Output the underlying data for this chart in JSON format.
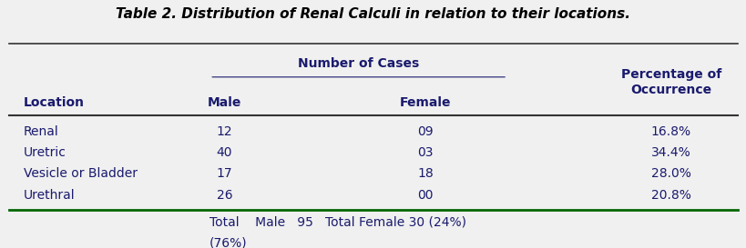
{
  "title": "Table 2. Distribution of Renal Calculi in relation to their locations.",
  "header_col1": "Location",
  "header_group": "Number of Cases",
  "header_sub1": "Male",
  "header_sub2": "Female",
  "header_col4": "Percentage of\nOccurrence",
  "rows": [
    [
      "Renal",
      "12",
      "09",
      "16.8%"
    ],
    [
      "Uretric",
      "40",
      "03",
      "34.4%"
    ],
    [
      "Vesicle or Bladder",
      "17",
      "18",
      "28.0%"
    ],
    [
      "Urethral",
      "26",
      "00",
      "20.8%"
    ]
  ],
  "footer": "Total    Male   95   Total Female 30 (24%)\n(76%)",
  "bg_color": "#f0f0f0",
  "text_color": "#1a1a6e",
  "line_color_top": "#333333",
  "line_color_bottom": "#006600",
  "title_fontsize": 11,
  "body_fontsize": 10
}
